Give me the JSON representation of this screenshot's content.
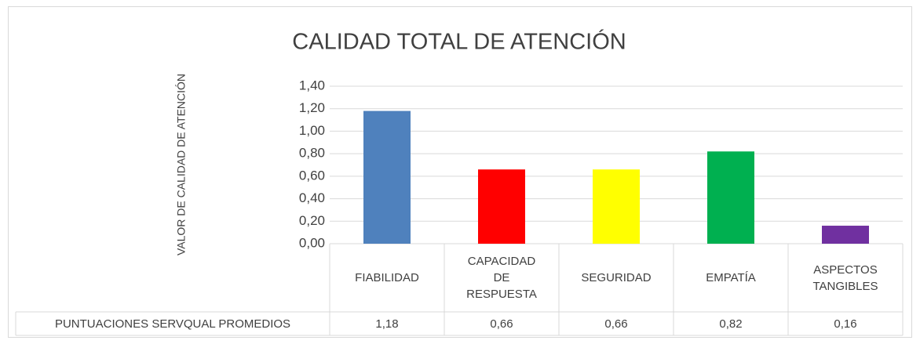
{
  "chart_data": {
    "type": "bar",
    "title": "CALIDAD TOTAL DE ATENCIÓN",
    "y_label": "VALOR DE CALIDAD DE ATENCIÓN",
    "categories": [
      "FIABILIDAD",
      "CAPACIDAD DE RESPUESTA",
      "SEGURIDAD",
      "EMPATÍA",
      "ASPECTOS TANGIBLES"
    ],
    "series": [
      {
        "name": "PUNTUACIONES SERVQUAL PROMEDIOS",
        "values": [
          1.18,
          0.66,
          0.66,
          0.82,
          0.16
        ],
        "value_labels": [
          "1,18",
          "0,66",
          "0,66",
          "0,82",
          "0,16"
        ],
        "colors": [
          "#4f81bd",
          "#ff0000",
          "#ffff00",
          "#00b050",
          "#7030a0"
        ]
      }
    ],
    "ylim": [
      0,
      1.4
    ],
    "yticks": [
      {
        "value": 0,
        "label": "0,00"
      },
      {
        "value": 0.2,
        "label": "0,20"
      },
      {
        "value": 0.4,
        "label": "0,40"
      },
      {
        "value": 0.6,
        "label": "0,60"
      },
      {
        "value": 0.8,
        "label": "0,80"
      },
      {
        "value": 1.0,
        "label": "1,00"
      },
      {
        "value": 1.2,
        "label": "1,20"
      },
      {
        "value": 1.4,
        "label": "1,40"
      }
    ],
    "grid": true
  }
}
